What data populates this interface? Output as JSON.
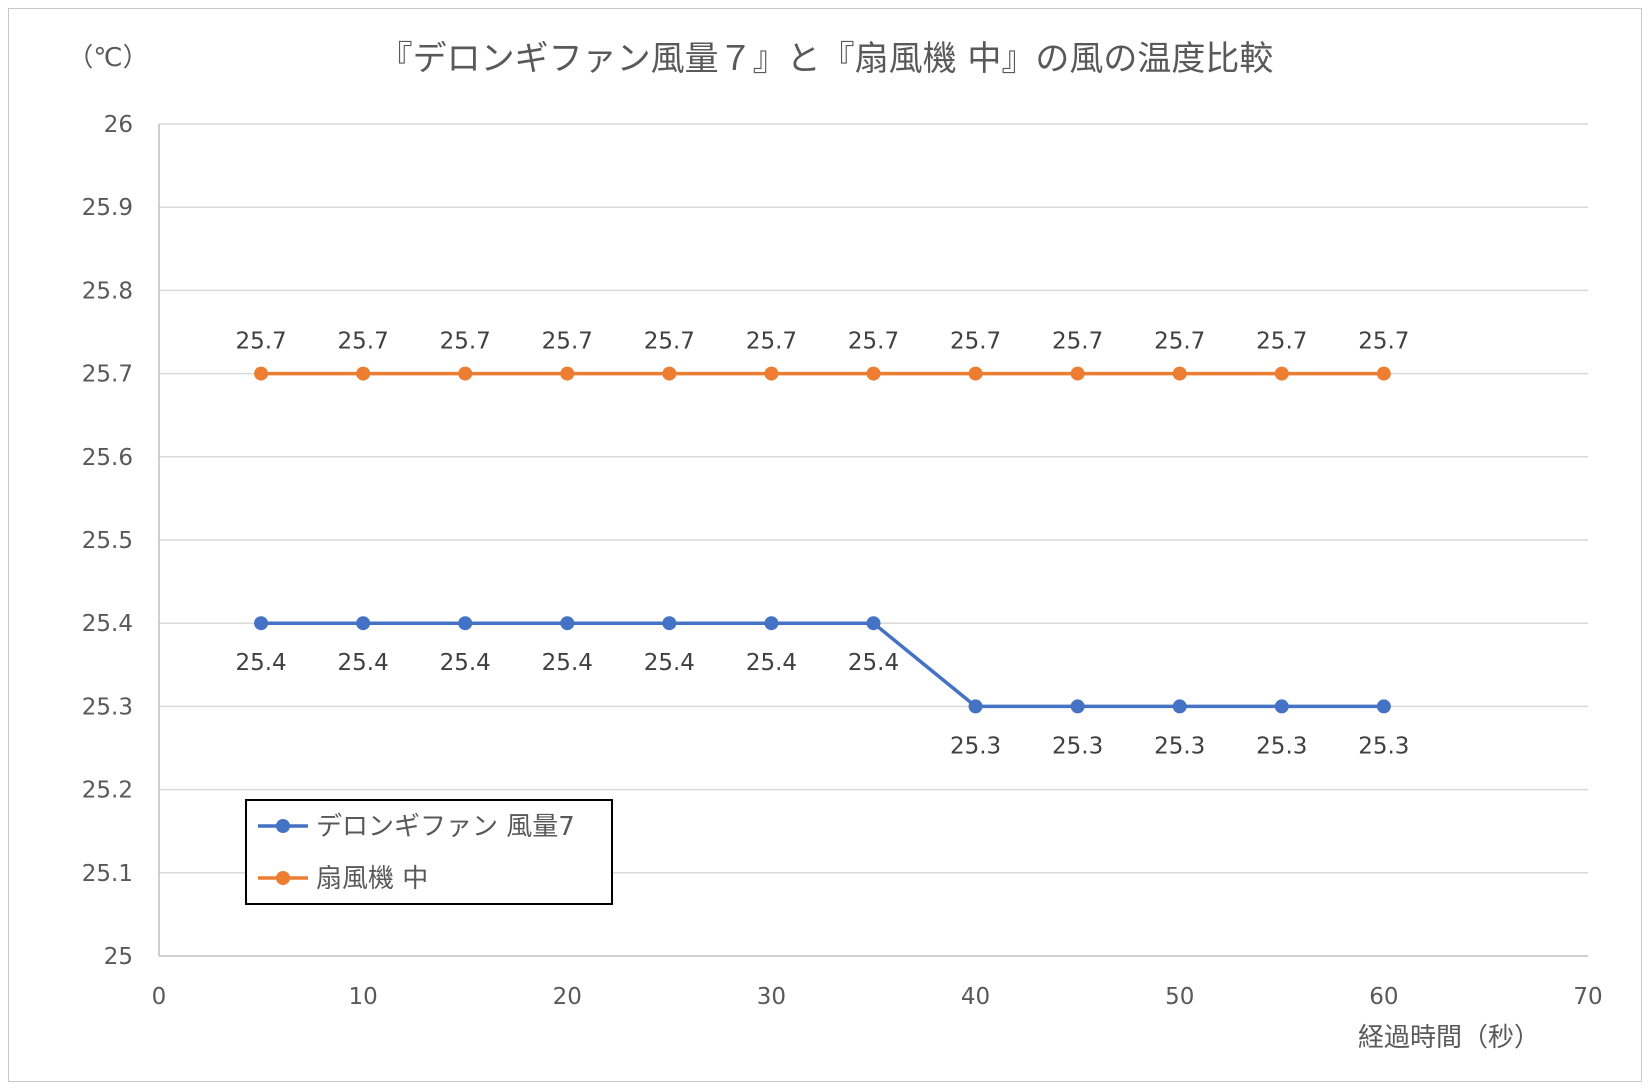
{
  "chart_data": {
    "type": "line",
    "title": "『デロンギファン風量７』と『扇風機 中』の風の温度比較",
    "ylabel": "（℃）",
    "xlabel": "経過時間（秒）",
    "xlim": [
      0,
      70
    ],
    "ylim": [
      25,
      26
    ],
    "x_ticks": [
      0,
      10,
      20,
      30,
      40,
      50,
      60,
      70
    ],
    "y_ticks": [
      25,
      25.1,
      25.2,
      25.3,
      25.4,
      25.5,
      25.6,
      25.7,
      25.8,
      25.9,
      26
    ],
    "y_tick_labels": [
      "25",
      "25.1",
      "25.2",
      "25.3",
      "25.4",
      "25.5",
      "25.6",
      "25.7",
      "25.8",
      "25.9",
      "26"
    ],
    "grid": true,
    "legend_position": "bottom-left",
    "series": [
      {
        "name": "デロンギファン 風量7",
        "color": "#4472C4",
        "label_position": "below",
        "x": [
          5,
          10,
          15,
          20,
          25,
          30,
          35,
          40,
          45,
          50,
          55,
          60
        ],
        "values": [
          25.4,
          25.4,
          25.4,
          25.4,
          25.4,
          25.4,
          25.4,
          25.3,
          25.3,
          25.3,
          25.3,
          25.3
        ],
        "labels": [
          "25.4",
          "25.4",
          "25.4",
          "25.4",
          "25.4",
          "25.4",
          "25.4",
          "25.3",
          "25.3",
          "25.3",
          "25.3",
          "25.3"
        ]
      },
      {
        "name": "扇風機 中",
        "color": "#ED7D31",
        "label_position": "above",
        "x": [
          5,
          10,
          15,
          20,
          25,
          30,
          35,
          40,
          45,
          50,
          55,
          60
        ],
        "values": [
          25.7,
          25.7,
          25.7,
          25.7,
          25.7,
          25.7,
          25.7,
          25.7,
          25.7,
          25.7,
          25.7,
          25.7
        ],
        "labels": [
          "25.7",
          "25.7",
          "25.7",
          "25.7",
          "25.7",
          "25.7",
          "25.7",
          "25.7",
          "25.7",
          "25.7",
          "25.7",
          "25.7"
        ]
      }
    ]
  }
}
